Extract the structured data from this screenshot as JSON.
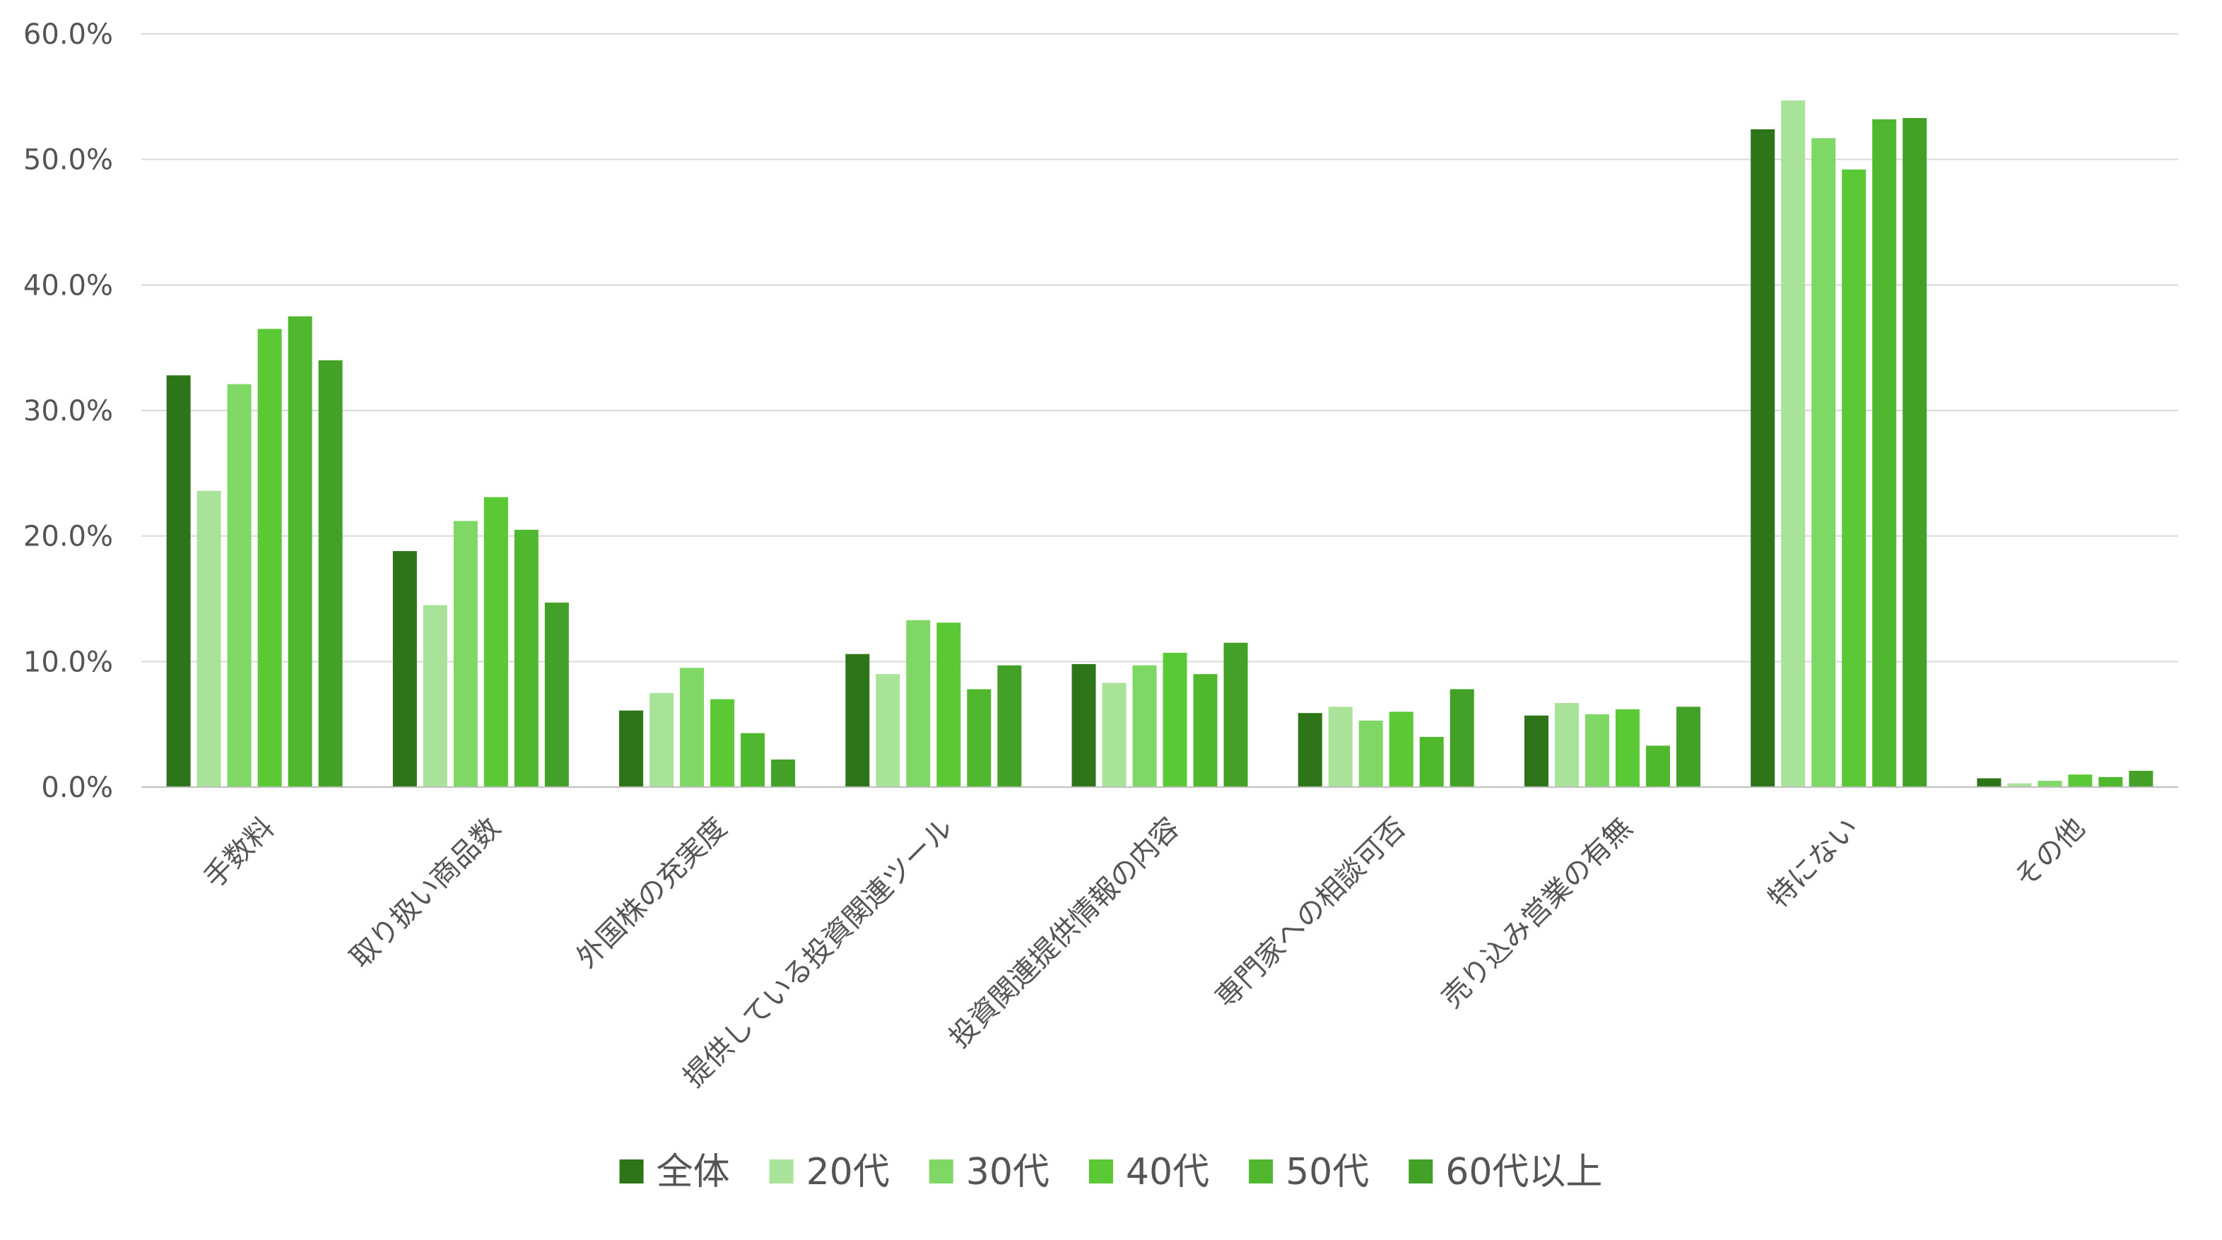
{
  "chart_data": {
    "type": "bar",
    "title": "",
    "xlabel": "",
    "ylabel": "",
    "ylim": [
      0,
      60
    ],
    "yticks": [
      0,
      10,
      20,
      30,
      40,
      50,
      60
    ],
    "ytick_labels": [
      "0.0%",
      "10.0%",
      "20.0%",
      "30.0%",
      "40.0%",
      "50.0%",
      "60.0%"
    ],
    "grid": true,
    "legend_position": "bottom",
    "categories": [
      "手数料",
      "取り扱い商品数",
      "外国株の充実度",
      "提供している投資関連ツール",
      "投資関連提供情報の内容",
      "専門家への相談可否",
      "売り込み営業の有無",
      "特にない",
      "その他"
    ],
    "series": [
      {
        "name": "全体",
        "color": "#2e7418",
        "values": [
          32.8,
          18.8,
          6.1,
          10.6,
          9.8,
          5.9,
          5.7,
          52.4,
          0.7
        ]
      },
      {
        "name": "20代",
        "color": "#a9e39a",
        "values": [
          23.6,
          14.5,
          7.5,
          9.0,
          8.3,
          6.4,
          6.7,
          54.7,
          0.3
        ]
      },
      {
        "name": "30代",
        "color": "#7fd866",
        "values": [
          32.1,
          21.2,
          9.5,
          13.3,
          9.7,
          5.3,
          5.8,
          51.7,
          0.5
        ]
      },
      {
        "name": "40代",
        "color": "#5ac935",
        "values": [
          36.5,
          23.1,
          7.0,
          13.1,
          10.7,
          6.0,
          6.2,
          49.2,
          1.0
        ]
      },
      {
        "name": "50代",
        "color": "#50b82e",
        "values": [
          37.5,
          20.5,
          4.3,
          7.8,
          9.0,
          4.0,
          3.3,
          53.2,
          0.8
        ]
      },
      {
        "name": "60代以上",
        "color": "#43a127",
        "values": [
          34.0,
          14.7,
          2.2,
          9.7,
          11.5,
          7.8,
          6.4,
          53.3,
          1.3
        ]
      }
    ]
  }
}
